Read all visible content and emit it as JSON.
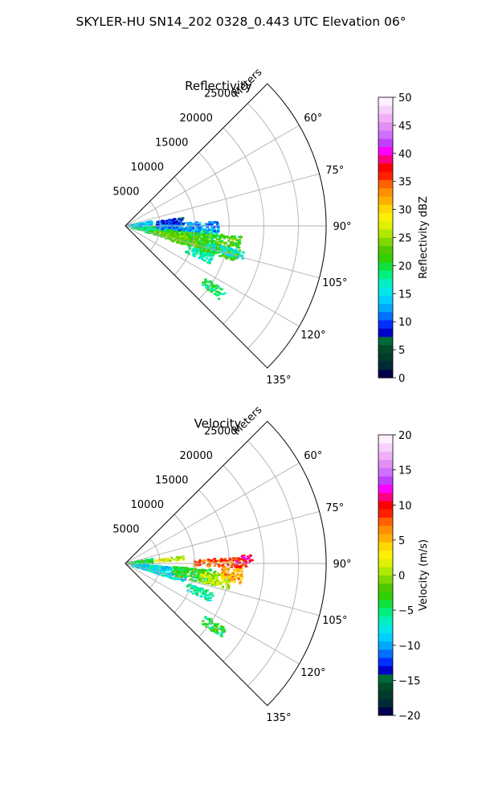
{
  "figure": {
    "title": "SKYLER-HU  SN14_202  0328_0.443 UTC Elevation 06°"
  },
  "chart_data": [
    {
      "type": "polar-sector",
      "title": "Reflectivity",
      "radial_label": "Meters",
      "radial_ticks": [
        5000,
        10000,
        15000,
        20000,
        25000
      ],
      "radial_tick_labels": [
        "5000",
        "10000",
        "15000",
        "20000",
        "25000"
      ],
      "rmax": 29000,
      "angle_range_deg": [
        45,
        135
      ],
      "angle_ticks": [
        60,
        75,
        90,
        105,
        120,
        135
      ],
      "angle_tick_labels": [
        "60°",
        "75°",
        "90°",
        "105°",
        "120°",
        "135°"
      ],
      "grid": true,
      "colorbar": {
        "label": "Reflectivity dBZ",
        "min": 0,
        "max": 50,
        "ticks": [
          0,
          5,
          10,
          15,
          20,
          25,
          30,
          35,
          40,
          45,
          50
        ],
        "tick_labels": [
          "0",
          "5",
          "10",
          "15",
          "20",
          "25",
          "30",
          "35",
          "40",
          "45",
          "50"
        ],
        "colors": [
          "#00004c",
          "#002a36",
          "#023a2e",
          "#024a28",
          "#006a3a",
          "#0000c8",
          "#0030ff",
          "#0070ff",
          "#00a8ff",
          "#00d0ff",
          "#00e8e8",
          "#00f0c0",
          "#00f080",
          "#10e040",
          "#30d000",
          "#50c800",
          "#80d800",
          "#b0e800",
          "#e0f000",
          "#fff000",
          "#ffd800",
          "#ffb000",
          "#ff9000",
          "#ff6000",
          "#ff2000",
          "#ff0000",
          "#ff0080",
          "#ff00ff",
          "#c040ff",
          "#d070ff",
          "#e090f0",
          "#f0b0f8",
          "#f8d0fc",
          "#fff0ff"
        ]
      },
      "echo_clusters": [
        {
          "az": [
            92,
            107
          ],
          "range_m": [
            1000,
            14000
          ],
          "value": 19
        },
        {
          "az": [
            95,
            108
          ],
          "range_m": [
            6000,
            17000
          ],
          "value": 22
        },
        {
          "az": [
            100,
            106
          ],
          "range_m": [
            4000,
            11000
          ],
          "value": 23
        },
        {
          "az": [
            87,
            95
          ],
          "range_m": [
            4500,
            13500
          ],
          "value": 12
        },
        {
          "az": [
            82,
            88
          ],
          "range_m": [
            4500,
            8500
          ],
          "value": 9
        },
        {
          "az": [
            80,
            92
          ],
          "range_m": [
            400,
            4000
          ],
          "value": 14
        },
        {
          "az": [
            108,
            114
          ],
          "range_m": [
            9500,
            13500
          ],
          "value": 17
        },
        {
          "az": [
            123,
            128
          ],
          "range_m": [
            13800,
            17500
          ],
          "value": 19
        },
        {
          "az": [
            102,
            106
          ],
          "range_m": [
            12000,
            18000
          ],
          "value": 16
        }
      ]
    },
    {
      "type": "polar-sector",
      "title": "Velocity",
      "radial_label": "Meters",
      "radial_ticks": [
        5000,
        10000,
        15000,
        20000,
        25000
      ],
      "radial_tick_labels": [
        "5000",
        "10000",
        "15000",
        "20000",
        "25000"
      ],
      "rmax": 29000,
      "angle_range_deg": [
        45,
        135
      ],
      "angle_ticks": [
        60,
        75,
        90,
        105,
        120,
        135
      ],
      "angle_tick_labels": [
        "60°",
        "75°",
        "90°",
        "105°",
        "120°",
        "135°"
      ],
      "grid": true,
      "colorbar": {
        "label": "Velocity (m/s)",
        "min": -20,
        "max": 20,
        "ticks": [
          -20,
          -15,
          -10,
          -5,
          0,
          5,
          10,
          15,
          20
        ],
        "tick_labels": [
          "−20",
          "−15",
          "−10",
          "−5",
          "0",
          "5",
          "10",
          "15",
          "20"
        ],
        "colors": [
          "#00004c",
          "#002a36",
          "#023a2e",
          "#024a28",
          "#006a3a",
          "#0000c8",
          "#0030ff",
          "#0070ff",
          "#00a8ff",
          "#00d0ff",
          "#00e8e8",
          "#00f0c0",
          "#00f080",
          "#10e040",
          "#30d000",
          "#50c800",
          "#80d800",
          "#b0e800",
          "#e0f000",
          "#fff000",
          "#ffd800",
          "#ffb000",
          "#ff9000",
          "#ff6000",
          "#ff2000",
          "#ff0000",
          "#ff0080",
          "#ff00ff",
          "#c040ff",
          "#d070ff",
          "#e090f0",
          "#f0b0f8",
          "#f8d0fc",
          "#fff0ff"
        ]
      },
      "echo_clusters": [
        {
          "az": [
            94,
            108
          ],
          "range_m": [
            1000,
            9000
          ],
          "value": -8
        },
        {
          "az": [
            94,
            104
          ],
          "range_m": [
            7000,
            13500
          ],
          "value": -3
        },
        {
          "az": [
            96,
            104
          ],
          "range_m": [
            11000,
            15500
          ],
          "value": 1
        },
        {
          "az": [
            92,
            100
          ],
          "range_m": [
            14000,
            17000
          ],
          "value": 5
        },
        {
          "az": [
            87,
            92
          ],
          "range_m": [
            10000,
            17500
          ],
          "value": 8
        },
        {
          "az": [
            86,
            90
          ],
          "range_m": [
            16000,
            18500
          ],
          "value": 11
        },
        {
          "az": [
            80,
            90
          ],
          "range_m": [
            400,
            4000
          ],
          "value": -4
        },
        {
          "az": [
            83,
            87
          ],
          "range_m": [
            4500,
            8500
          ],
          "value": 2
        },
        {
          "az": [
            108,
            114
          ],
          "range_m": [
            9500,
            13500
          ],
          "value": -6
        },
        {
          "az": [
            123,
            128
          ],
          "range_m": [
            13800,
            17500
          ],
          "value": -4
        }
      ]
    }
  ]
}
